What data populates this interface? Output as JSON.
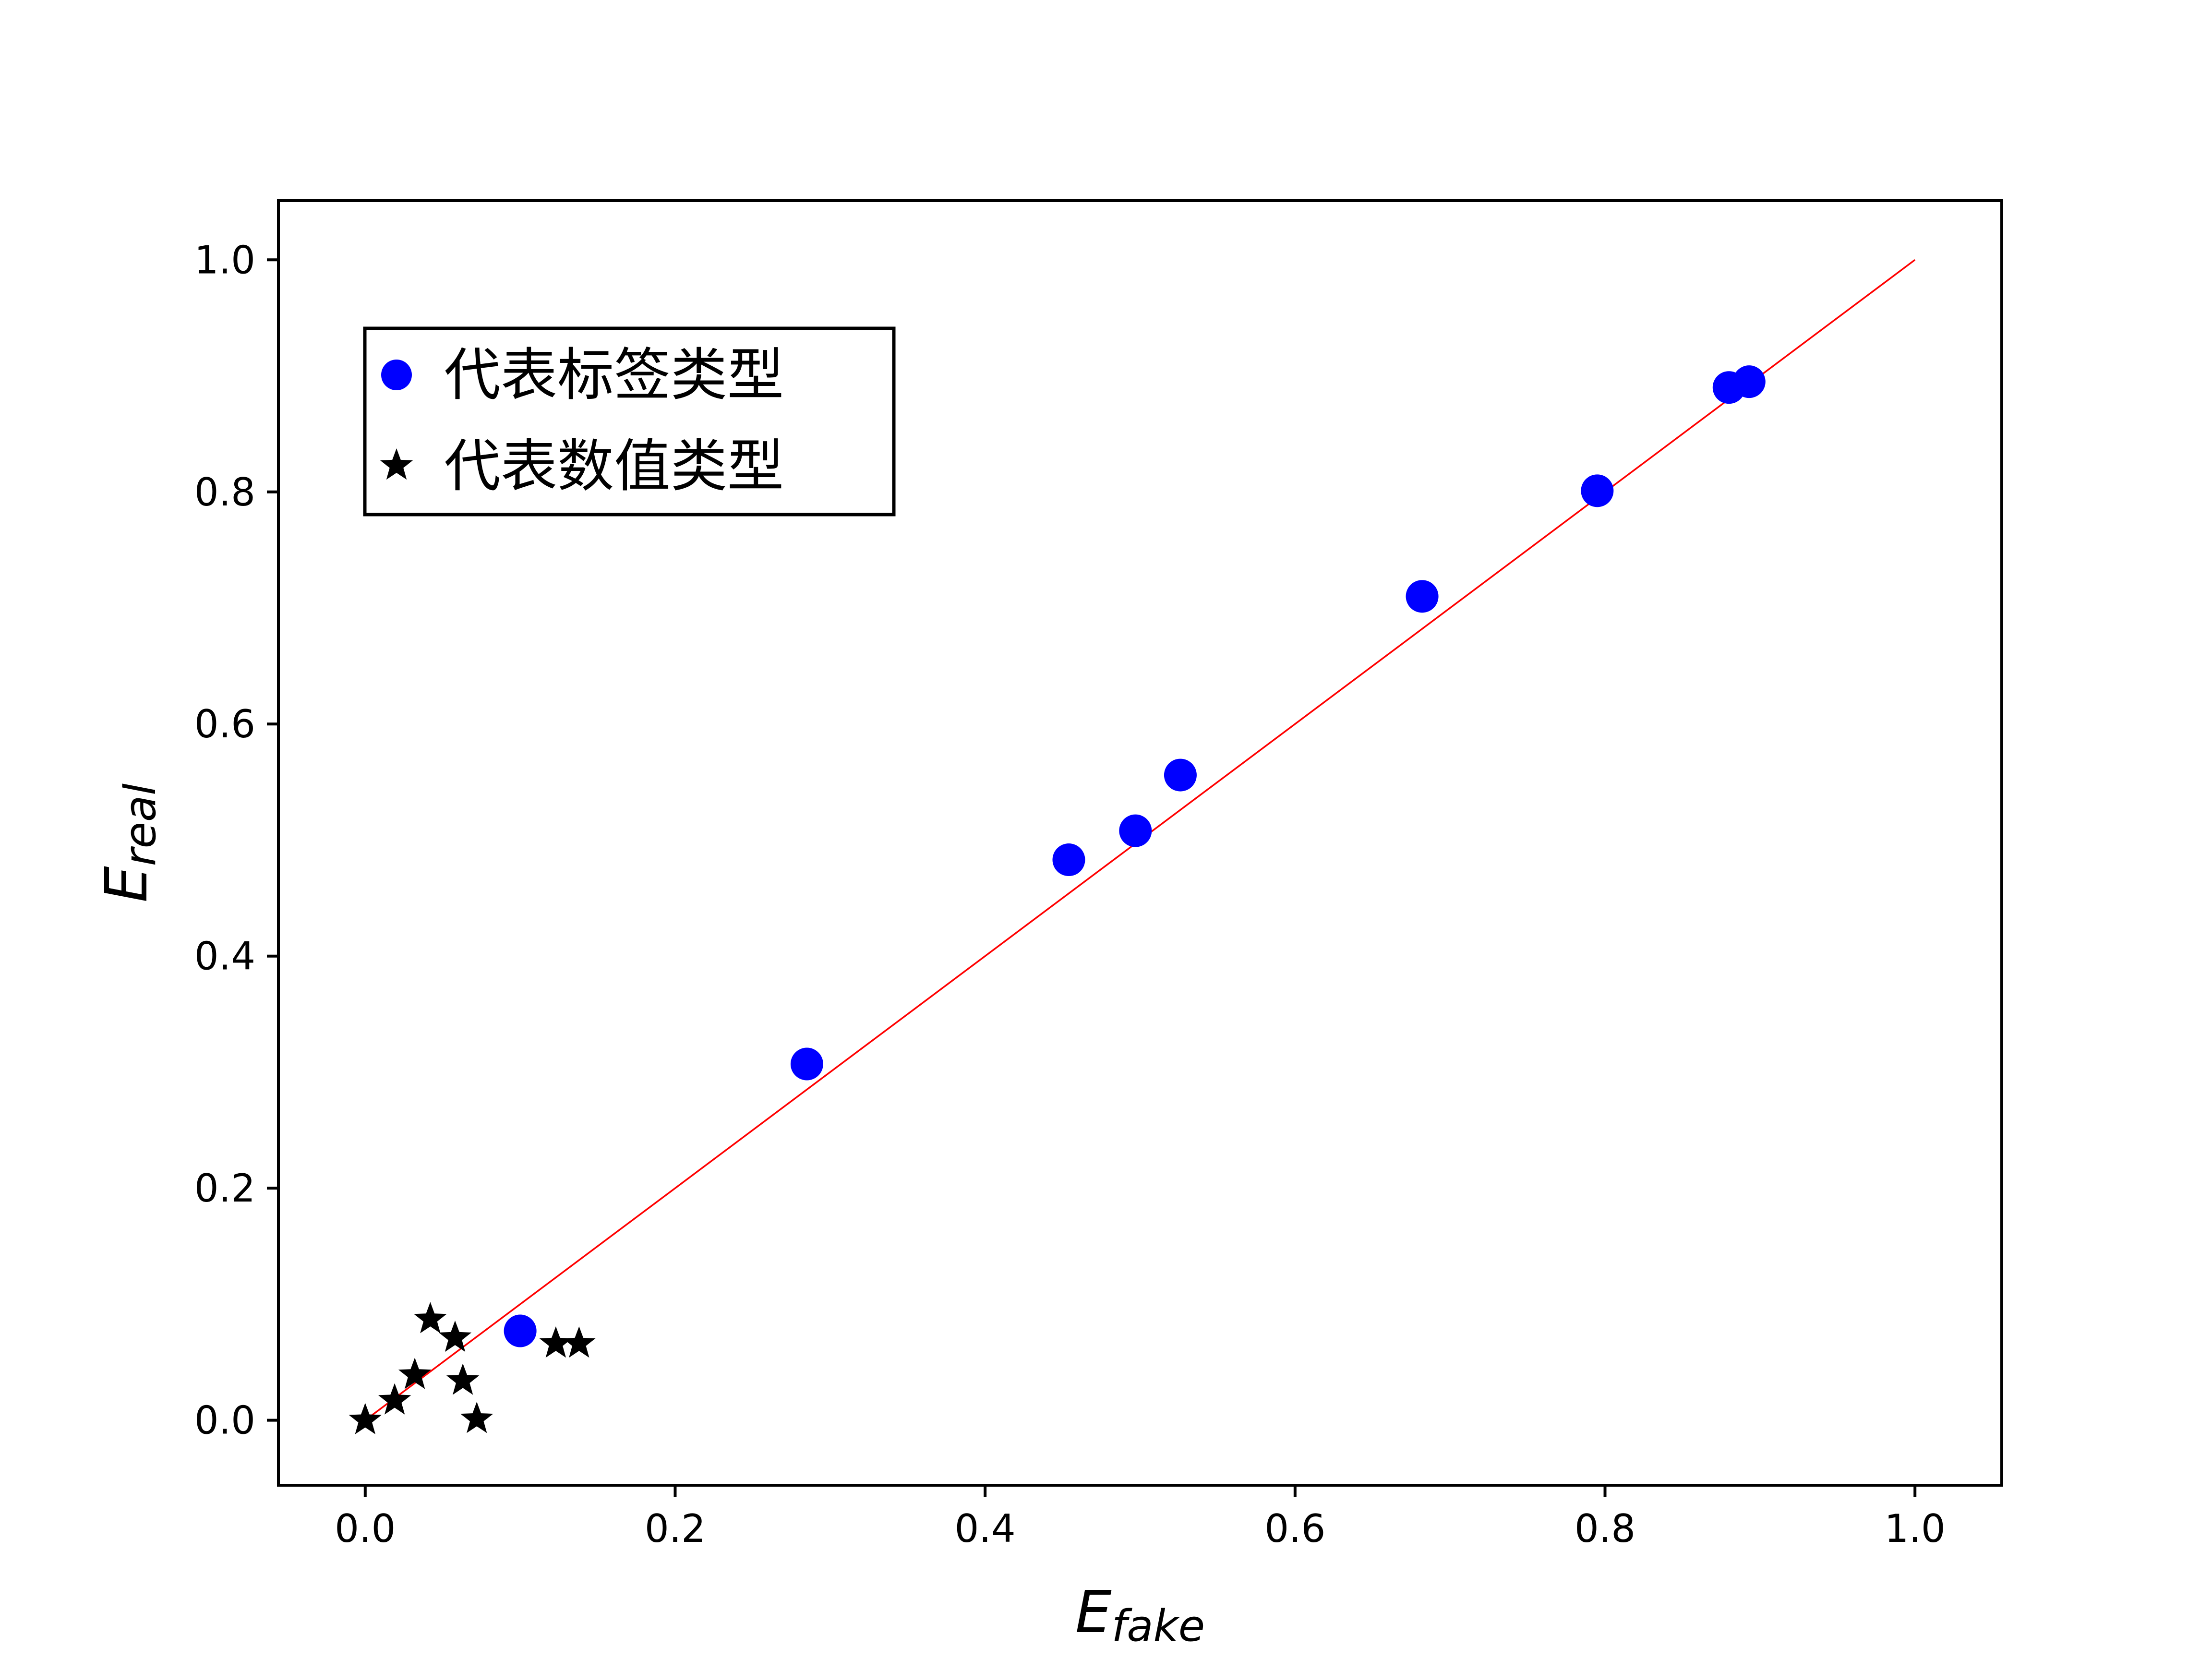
{
  "chart_data": {
    "type": "scatter",
    "xlabel": {
      "main": "E",
      "sub": "fake"
    },
    "ylabel": {
      "main": "E",
      "sub": "real"
    },
    "xlim": [
      -0.056,
      1.056
    ],
    "ylim": [
      -0.056,
      1.051
    ],
    "xticks": [
      "0.0",
      "0.2",
      "0.4",
      "0.6",
      "0.8",
      "1.0"
    ],
    "yticks": [
      "0.0",
      "0.2",
      "0.4",
      "0.6",
      "0.8",
      "1.0"
    ],
    "tick_values": [
      0.0,
      0.2,
      0.4,
      0.6,
      0.8,
      1.0
    ],
    "grid": false,
    "legend_position": "upper-left",
    "series": [
      {
        "name": "代表标签类型",
        "marker": "circle",
        "color": "#0000ff",
        "points": [
          [
            0.1,
            0.077
          ],
          [
            0.285,
            0.307
          ],
          [
            0.454,
            0.483
          ],
          [
            0.497,
            0.508
          ],
          [
            0.526,
            0.556
          ],
          [
            0.682,
            0.71
          ],
          [
            0.795,
            0.801
          ],
          [
            0.88,
            0.89
          ],
          [
            0.893,
            0.895
          ]
        ]
      },
      {
        "name": "代表数值类型",
        "marker": "star",
        "color": "#000000",
        "points": [
          [
            0.0,
            0.0
          ],
          [
            0.019,
            0.017
          ],
          [
            0.032,
            0.039
          ],
          [
            0.042,
            0.087
          ],
          [
            0.058,
            0.071
          ],
          [
            0.063,
            0.034
          ],
          [
            0.072,
            0.001
          ],
          [
            0.123,
            0.066
          ],
          [
            0.138,
            0.066
          ]
        ]
      }
    ],
    "reference_line": {
      "from": [
        0,
        0
      ],
      "to": [
        1,
        1
      ],
      "color": "#ff0000"
    }
  }
}
